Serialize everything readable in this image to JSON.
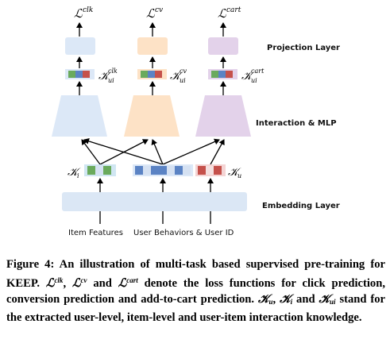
{
  "diagram": {
    "layers": {
      "projection": "Projection Layer",
      "interaction": "Interaction &  MLP",
      "embedding": "Embedding Layer"
    },
    "losses": {
      "clk": "clk",
      "cv": "cv",
      "cart": "cart"
    },
    "knowledge": {
      "ui": "ui",
      "i": "i",
      "u": "u"
    },
    "inputs": {
      "item": "Item Features",
      "user": "User Behaviors & User ID"
    },
    "colors": {
      "blue_box": "#dce8f7",
      "orange_box": "#fde2c6",
      "purple_box": "#e3d2ea",
      "green_cell": "#6aaa5c",
      "blue_cell": "#5b83c4",
      "red_cell": "#c5514b",
      "light_cell": "#d5e1f2",
      "embed_bar": "#dbe7f5"
    }
  },
  "caption": {
    "label": "Figure 4:",
    "part1": "An illustration of multi-task based supervised pre-training for KEEP.",
    "part2": "and",
    "part3": "denote the loss functions for click prediction, conversion prediction and add-to-cart prediction.",
    "part4": "stand for the extracted user-level, item-level and user-item interaction knowledge."
  }
}
